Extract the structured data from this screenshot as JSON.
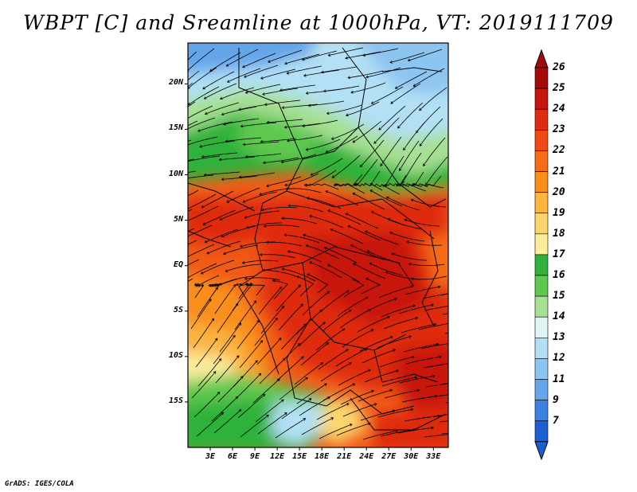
{
  "title": "WBPT [C] and Sreamline at 1000hPa, VT: 2019111709",
  "footer": "GrADS: IGES/COLA",
  "map": {
    "y_ticks": [
      {
        "label": "20N",
        "lat": 20
      },
      {
        "label": "15N",
        "lat": 15
      },
      {
        "label": "10N",
        "lat": 10
      },
      {
        "label": "5N",
        "lat": 5
      },
      {
        "label": "EQ",
        "lat": 0
      },
      {
        "label": "5S",
        "lat": -5
      },
      {
        "label": "10S",
        "lat": -10
      },
      {
        "label": "15S",
        "lat": -15
      }
    ],
    "x_ticks": [
      {
        "label": "3E",
        "lon": 3
      },
      {
        "label": "6E",
        "lon": 6
      },
      {
        "label": "9E",
        "lon": 9
      },
      {
        "label": "12E",
        "lon": 12
      },
      {
        "label": "15E",
        "lon": 15
      },
      {
        "label": "18E",
        "lon": 18
      },
      {
        "label": "21E",
        "lon": 21
      },
      {
        "label": "24E",
        "lon": 24
      },
      {
        "label": "27E",
        "lon": 27
      },
      {
        "label": "30E",
        "lon": 30
      },
      {
        "label": "33E",
        "lon": 33
      }
    ],
    "lon_range": [
      0,
      35
    ],
    "lat_range": [
      -20,
      24.5
    ]
  },
  "colorbar": {
    "labels": [
      "26",
      "25",
      "24",
      "23",
      "22",
      "21",
      "20",
      "19",
      "18",
      "17",
      "16",
      "15",
      "14",
      "13",
      "12",
      "11",
      "9",
      "7"
    ],
    "colors": [
      "#a50a0a",
      "#c8140f",
      "#df2c10",
      "#ef4a14",
      "#f76b16",
      "#fa8f1c",
      "#fcb43f",
      "#fcd56e",
      "#fbed9c",
      "#2fb23b",
      "#5ec850",
      "#a6e093",
      "#dff6f5",
      "#b3e0f5",
      "#8cc5f0",
      "#63a5eb",
      "#3d81e2",
      "#1c5fd4"
    ]
  }
}
